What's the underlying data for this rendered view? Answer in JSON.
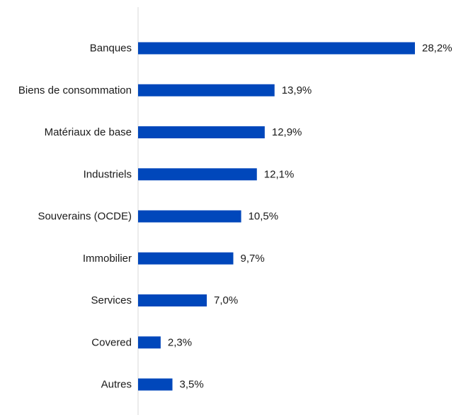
{
  "chart_data": {
    "type": "bar",
    "orientation": "horizontal",
    "categories": [
      "Banques",
      "Biens de consommation",
      "Matériaux de base",
      "Industriels",
      "Souverains (OCDE)",
      "Immobilier",
      "Services",
      "Covered",
      "Autres"
    ],
    "values": [
      28.2,
      13.9,
      12.9,
      12.1,
      10.5,
      9.7,
      7.0,
      2.3,
      3.5
    ],
    "value_labels": [
      "28,2%",
      "13,9%",
      "12,9%",
      "12,1%",
      "10,5%",
      "9,7%",
      "7,0%",
      "2,3%",
      "3,5%"
    ],
    "bar_color": "#0047BB",
    "axis_color": "#d9d9d9",
    "grid": false,
    "legend": "none"
  }
}
